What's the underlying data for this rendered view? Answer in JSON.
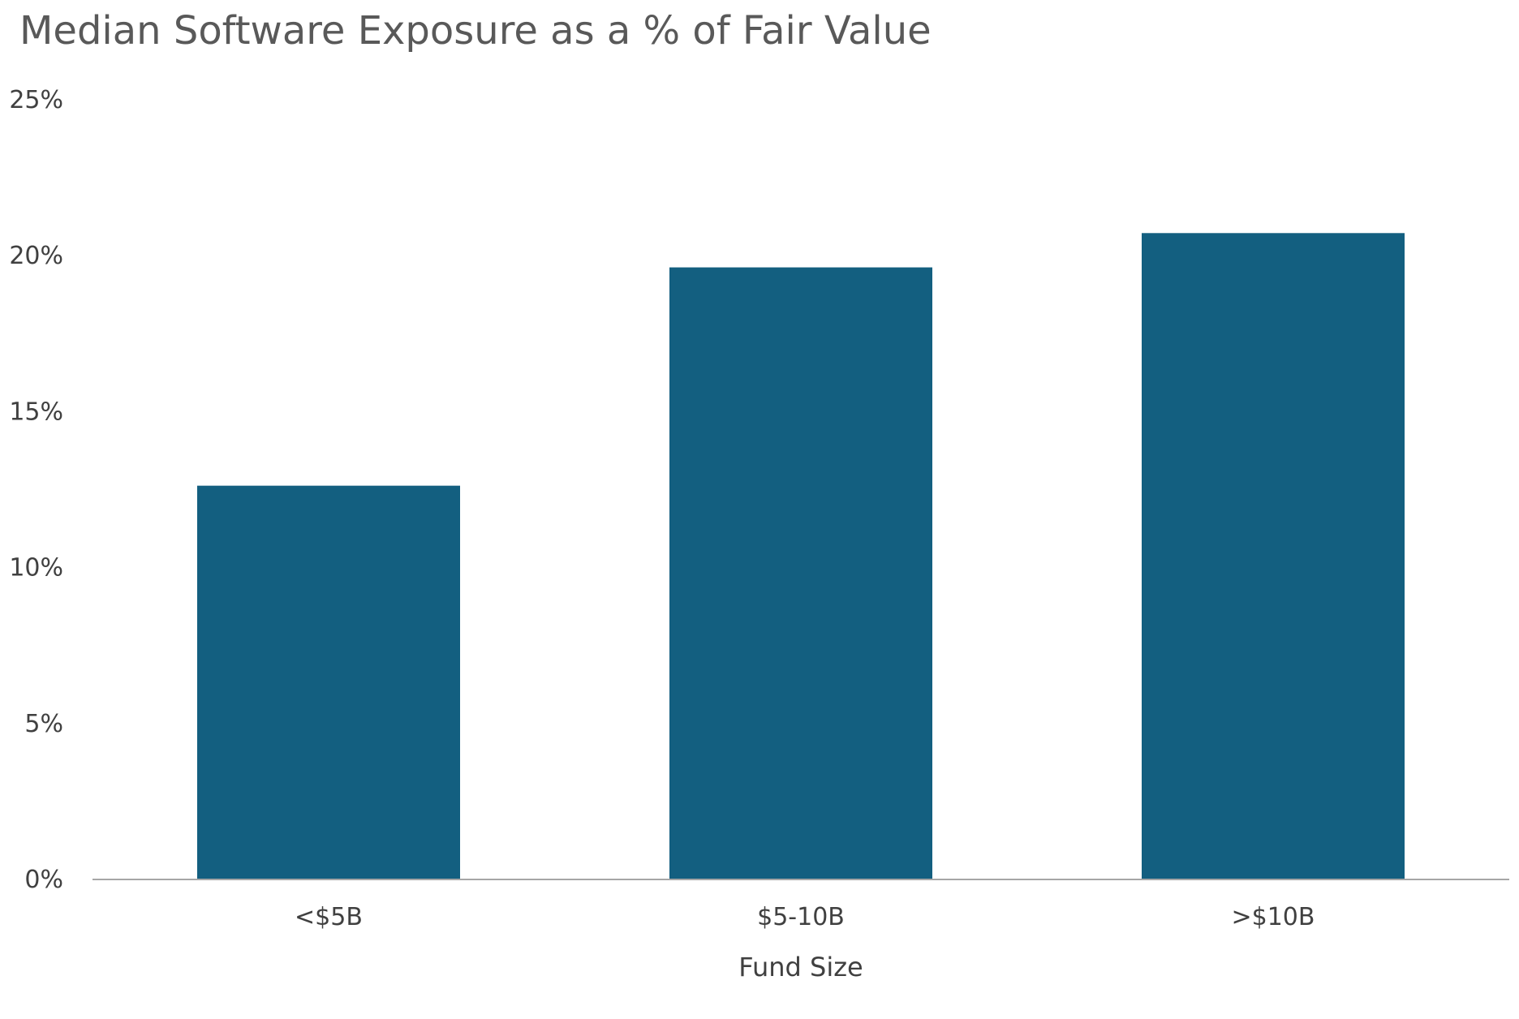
{
  "chart_data": {
    "type": "bar",
    "title": "Median Software Exposure as a % of Fair Value",
    "xlabel": "Fund Size",
    "ylabel": "",
    "categories": [
      "<$5B",
      "$5-10B",
      ">$10B"
    ],
    "values": [
      12.6,
      19.6,
      20.7
    ],
    "ylim": [
      0,
      25
    ],
    "yticks": [
      0,
      5,
      10,
      15,
      20,
      25
    ],
    "ytick_labels": [
      "0%",
      "5%",
      "10%",
      "15%",
      "20%",
      "25%"
    ],
    "bar_color": "#135f80",
    "grid": false,
    "legend": "none"
  }
}
